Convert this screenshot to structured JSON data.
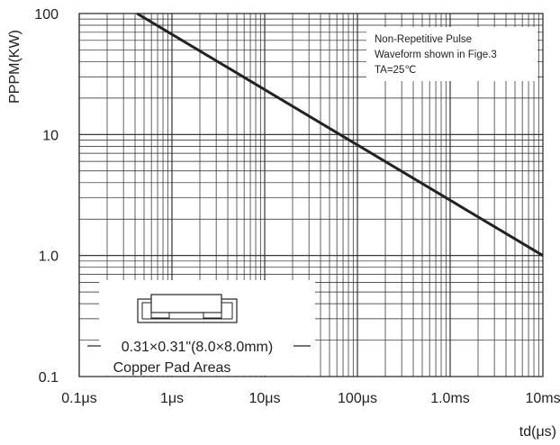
{
  "chart_data": {
    "type": "line",
    "title": "",
    "xlabel": "td(μs)",
    "ylabel": "PPPM(KW)",
    "xscale": "log",
    "yscale": "log",
    "xlim": [
      0.1,
      10000
    ],
    "ylim": [
      0.1,
      100
    ],
    "grid": true,
    "x_tick_labels": [
      "0.1μs",
      "1μs",
      "10μs",
      "100μs",
      "1.0ms",
      "10ms"
    ],
    "y_tick_labels": [
      "100",
      "10",
      "1.0",
      "0.1"
    ],
    "series": [
      {
        "x": [
          0.42,
          10000
        ],
        "y": [
          100,
          1.0
        ]
      }
    ],
    "annotation_lines": [
      "Non-Repetitive Pulse",
      "Waveform shown in Fige.3",
      "TA=25℃"
    ],
    "inset_lines": [
      "0.31×0.31\"(8.0×8.0mm)",
      "Copper Pad Areas"
    ]
  },
  "colors": {
    "line": "#222222",
    "grid": "#222222",
    "text": "#222222"
  }
}
